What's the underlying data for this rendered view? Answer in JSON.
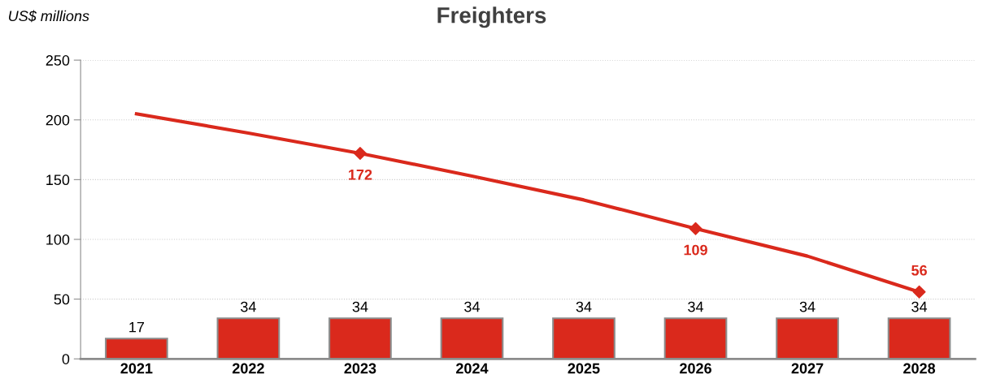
{
  "chart_data": {
    "type": "bar",
    "title": "Freighters",
    "ylabel": "US$ millions",
    "categories": [
      "2021",
      "2022",
      "2023",
      "2024",
      "2025",
      "2026",
      "2027",
      "2028"
    ],
    "series": [
      {
        "color": "#da291c",
        "values": [
          17,
          34,
          34,
          34,
          34,
          34,
          34,
          34
        ],
        "data_labels": true
      },
      {
        "type": "line",
        "color": "#da291c",
        "values": [
          205,
          189,
          172,
          153,
          133,
          109,
          86,
          56
        ],
        "line_style": "solid"
      },
      {
        "type": "scatter",
        "color": "#da291c",
        "values": [
          null,
          null,
          172,
          null,
          null,
          109,
          null,
          56
        ],
        "data_labels": true,
        "marker": "diamond"
      }
    ],
    "ylim": [
      0,
      250
    ],
    "yticks": [
      0,
      50,
      100,
      150,
      200,
      250
    ],
    "grid": "y"
  }
}
